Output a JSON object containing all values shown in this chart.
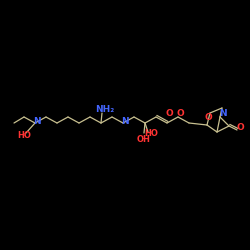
{
  "background": "#000000",
  "bond_color": "#c8c090",
  "N_color": "#4466ff",
  "O_color": "#ff3333",
  "figsize": [
    2.5,
    2.5
  ],
  "dpi": 100,
  "xlim": [
    0,
    250
  ],
  "ylim": [
    0,
    250
  ]
}
